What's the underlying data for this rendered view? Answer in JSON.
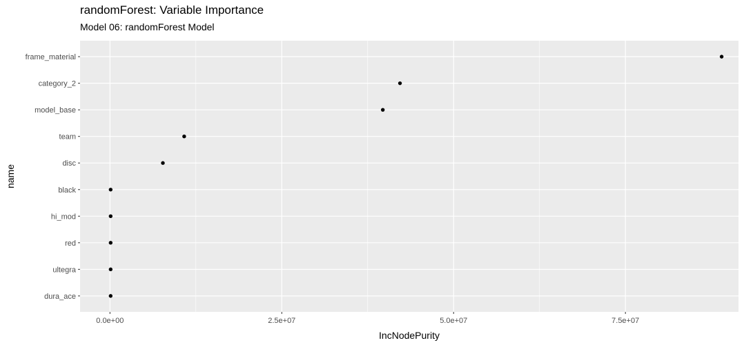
{
  "chart_data": {
    "type": "scatter",
    "title": "randomForest: Variable Importance",
    "subtitle": "Model 06: randomForest Model",
    "xlabel": "IncNodePurity",
    "ylabel": "name",
    "categories": [
      "frame_material",
      "category_2",
      "model_base",
      "team",
      "disc",
      "black",
      "hi_mod",
      "red",
      "ultegra",
      "dura_ace"
    ],
    "values": [
      89000000,
      42200000,
      39700000,
      10800000,
      7700000,
      100000,
      100000,
      100000,
      100000,
      100000
    ],
    "x_ticks": [
      0,
      25000000,
      50000000,
      75000000
    ],
    "x_tick_labels": [
      "0.0e+00",
      "2.5e+07",
      "5.0e+07",
      "7.5e+07"
    ],
    "xlim": [
      -4350000,
      91450000
    ],
    "grid": true,
    "colors": {
      "panel": "#ebebeb",
      "grid": "#ffffff",
      "point": "#000000"
    }
  }
}
